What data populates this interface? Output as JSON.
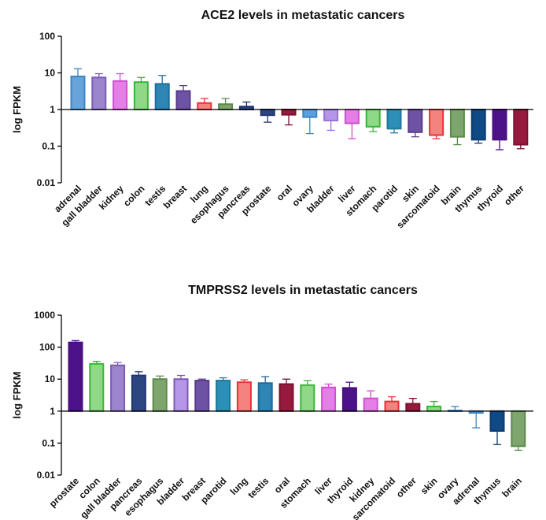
{
  "chart_data": [
    {
      "type": "bar",
      "title": "ACE2 levels in metastatic cancers",
      "ylabel": "log FPKM",
      "yscale": "log",
      "ylim": [
        0.01,
        100
      ],
      "yticks": [
        "0.01",
        "0.1",
        "1",
        "10",
        "100"
      ],
      "baseline": 1,
      "categories": [
        "adrenal",
        "gall bladder",
        "kidney",
        "colon",
        "testis",
        "breast",
        "lung",
        "esophagus",
        "pancreas",
        "prostate",
        "oral",
        "ovary",
        "bladder",
        "liver",
        "stomach",
        "parotid",
        "skin",
        "sarcomatoid",
        "brain",
        "thymus",
        "thyroid",
        "other"
      ],
      "values": [
        8,
        7.5,
        6,
        5.6,
        5,
        3.2,
        1.5,
        1.4,
        1.2,
        0.7,
        0.72,
        0.62,
        0.5,
        0.42,
        0.34,
        0.3,
        0.24,
        0.2,
        0.18,
        0.15,
        0.15,
        0.11
      ],
      "errors": [
        13,
        9.5,
        9.5,
        7.5,
        8.5,
        4.5,
        2,
        2,
        1.6,
        0.45,
        0.38,
        0.22,
        0.27,
        0.16,
        0.25,
        0.23,
        0.18,
        0.16,
        0.11,
        0.12,
        0.08,
        0.085
      ],
      "colors": [
        "#3d86c6",
        "#7d5bb5",
        "#d14fd1",
        "#3ab53a",
        "#1d6d99",
        "#5a3c8c",
        "#e8333a",
        "#5b8a4a",
        "#1b2f6b",
        "#23366e",
        "#7b1030",
        "#3d86c6",
        "#9a73d4",
        "#d14fd1",
        "#3ab53a",
        "#1e7898",
        "#5a3c8c",
        "#e8333a",
        "#5b8a4a",
        "#0d3a70",
        "#4a0d80",
        "#7b1030"
      ],
      "fills": [
        "#68a4d9",
        "#9b85cc",
        "#e37fe6",
        "#8ed888",
        "#2e86b5",
        "#6e52a3",
        "#f4827e",
        "#7fa56e",
        "#2d4682",
        "#2d4682",
        "#961a3e",
        "#5c9fe0",
        "#b596e8",
        "#e37fe6",
        "#8ed888",
        "#2b8fb8",
        "#6e52a3",
        "#f4827e",
        "#7fa56e",
        "#0f4a86",
        "#4b1387",
        "#961a3e"
      ]
    },
    {
      "type": "bar",
      "title": "TMPRSS2 levels in metastatic cancers",
      "ylabel": "log FPKM",
      "yscale": "log",
      "ylim": [
        0.01,
        1000
      ],
      "yticks": [
        "0.01",
        "0.1",
        "1",
        "10",
        "100",
        "1000"
      ],
      "baseline": 1,
      "categories": [
        "prostate",
        "colon",
        "gall bladder",
        "pancreas",
        "esophagus",
        "bladder",
        "breast",
        "parotid",
        "lung",
        "testis",
        "oral",
        "stomach",
        "liver",
        "thyroid",
        "kidney",
        "sarcomatoid",
        "other",
        "skin",
        "ovary",
        "adrenal",
        "thymus",
        "brain"
      ],
      "values": [
        140,
        30,
        27,
        13,
        10,
        10,
        9,
        9,
        8,
        7.5,
        7,
        6.5,
        5.5,
        5.3,
        2.5,
        2,
        1.7,
        1.4,
        1.05,
        0.88,
        0.24,
        0.08
      ],
      "errors": [
        160,
        36,
        33,
        17,
        12.5,
        13,
        10,
        11,
        9.5,
        12,
        10,
        9,
        7,
        8,
        4.3,
        2.8,
        2.5,
        2,
        1.4,
        0.3,
        0.09,
        0.06
      ],
      "colors": [
        "#4a0d80",
        "#3ab53a",
        "#7d5bb5",
        "#23366e",
        "#5b8a4a",
        "#7d5bb5",
        "#5a3c8c",
        "#1e7898",
        "#e8333a",
        "#1d6d99",
        "#7b1030",
        "#3ab53a",
        "#d14fd1",
        "#4a0d80",
        "#d14fd1",
        "#e8333a",
        "#7b1030",
        "#3ab53a",
        "#3d86c6",
        "#3d86c6",
        "#0d3a70",
        "#5b8a4a"
      ],
      "fills": [
        "#4b1387",
        "#8ed888",
        "#9b85cc",
        "#2d4682",
        "#7fa56e",
        "#b596e8",
        "#6e52a3",
        "#2b8fb8",
        "#f4827e",
        "#2e86b5",
        "#961a3e",
        "#8ed888",
        "#e37fe6",
        "#4b1387",
        "#e37fe6",
        "#f4827e",
        "#961a3e",
        "#8ed888",
        "#68a4d9",
        "#68a4d9",
        "#0f4a86",
        "#7fa56e"
      ]
    }
  ]
}
